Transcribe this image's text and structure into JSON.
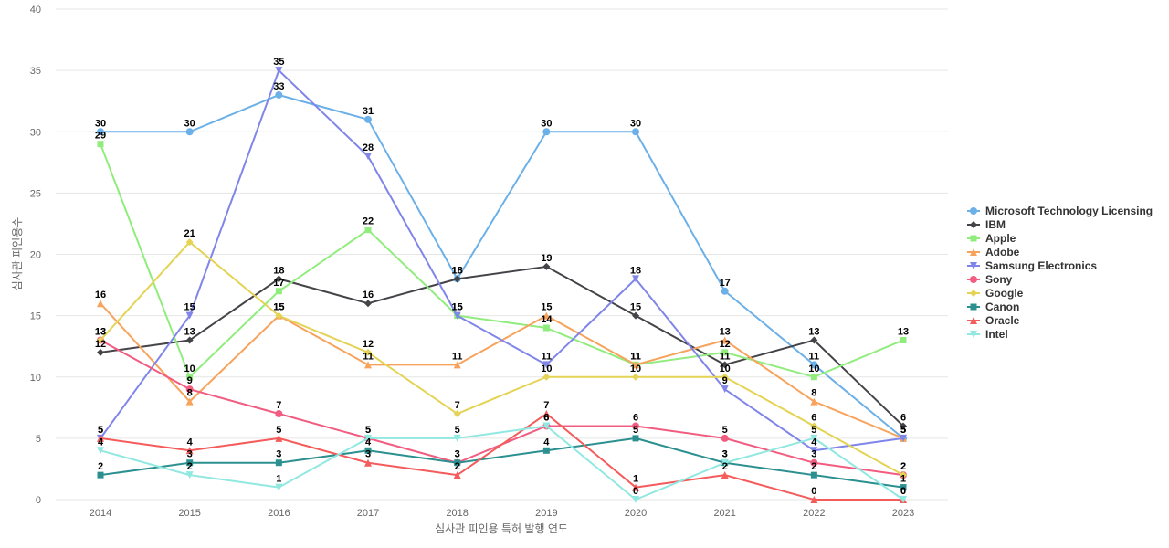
{
  "chart_data": {
    "type": "line",
    "title": "",
    "xlabel": "심사관 피인용 특허 발행 연도",
    "ylabel": "심사관 피인용수",
    "ylim": [
      0,
      40
    ],
    "yticks": [
      0,
      5,
      10,
      15,
      20,
      25,
      30,
      35,
      40
    ],
    "grid": true,
    "legend_position": "right",
    "categories": [
      "2014",
      "2015",
      "2016",
      "2017",
      "2018",
      "2019",
      "2020",
      "2021",
      "2022",
      "2023"
    ],
    "series": [
      {
        "name": "Microsoft Technology Licensing",
        "color": "#6cb0e8",
        "marker": "circle",
        "values": [
          30,
          30,
          33,
          31,
          18,
          30,
          30,
          17,
          11,
          5
        ]
      },
      {
        "name": "IBM",
        "color": "#434348",
        "marker": "diamond",
        "values": [
          12,
          13,
          18,
          16,
          18,
          19,
          15,
          11,
          13,
          6
        ]
      },
      {
        "name": "Apple",
        "color": "#90ed7d",
        "marker": "square",
        "values": [
          29,
          10,
          17,
          22,
          15,
          14,
          11,
          12,
          10,
          13
        ]
      },
      {
        "name": "Adobe",
        "color": "#f7a35c",
        "marker": "triangle",
        "values": [
          16,
          8,
          15,
          11,
          11,
          15,
          11,
          13,
          8,
          5
        ]
      },
      {
        "name": "Samsung Electronics",
        "color": "#8085e9",
        "marker": "triangle-down",
        "values": [
          5,
          15,
          35,
          28,
          15,
          11,
          18,
          9,
          4,
          5
        ]
      },
      {
        "name": "Sony",
        "color": "#f15c80",
        "marker": "circle",
        "values": [
          13,
          9,
          7,
          5,
          3,
          6,
          6,
          5,
          3,
          2
        ]
      },
      {
        "name": "Google",
        "color": "#e4d354",
        "marker": "diamond",
        "values": [
          13,
          21,
          15,
          12,
          7,
          10,
          10,
          10,
          6,
          2
        ]
      },
      {
        "name": "Canon",
        "color": "#2b908f",
        "marker": "square",
        "values": [
          2,
          3,
          3,
          4,
          3,
          4,
          5,
          3,
          2,
          1
        ]
      },
      {
        "name": "Oracle",
        "color": "#f45b5b",
        "marker": "triangle",
        "values": [
          5,
          4,
          5,
          3,
          2,
          7,
          1,
          2,
          0,
          0
        ]
      },
      {
        "name": "Intel",
        "color": "#91e8e1",
        "marker": "triangle-down",
        "values": [
          4,
          2,
          1,
          5,
          5,
          6,
          0,
          3,
          5,
          0
        ]
      }
    ]
  }
}
